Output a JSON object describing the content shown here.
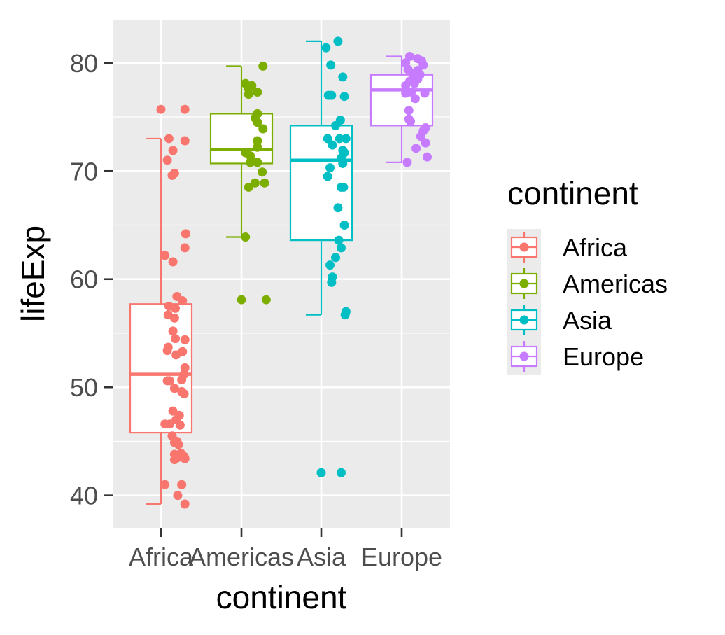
{
  "chart_data": {
    "type": "boxplot",
    "xlabel": "continent",
    "ylabel": "lifeExp",
    "ylim": [
      37,
      84
    ],
    "yticks": [
      40,
      50,
      60,
      70,
      80
    ],
    "categories": [
      "Africa",
      "Americas",
      "Asia",
      "Europe"
    ],
    "grid": true,
    "legend": {
      "title": "continent",
      "position": "right",
      "entries": [
        "Africa",
        "Americas",
        "Asia",
        "Europe"
      ]
    },
    "colors": {
      "Africa": "#F8766D",
      "Americas": "#7CAE00",
      "Asia": "#00BFC4",
      "Europe": "#C77CFF",
      "panel_bg": "#EBEBEB",
      "grid": "#FFFFFF",
      "box_fill": "#FFFFFF"
    },
    "boxes": [
      {
        "name": "Africa",
        "whisker_low": 39.2,
        "q1": 45.8,
        "median": 51.2,
        "q3": 57.7,
        "whisker_high": 73.0
      },
      {
        "name": "Americas",
        "whisker_low": 63.9,
        "q1": 70.7,
        "median": 72.0,
        "q3": 75.3,
        "whisker_high": 79.7
      },
      {
        "name": "Asia",
        "whisker_low": 56.7,
        "q1": 63.6,
        "median": 71.0,
        "q3": 74.2,
        "whisker_high": 82.0
      },
      {
        "name": "Europe",
        "whisker_low": 70.8,
        "q1": 74.2,
        "median": 77.5,
        "q3": 78.9,
        "whisker_high": 80.6
      }
    ],
    "points": [
      {
        "name": "Africa",
        "values": [
          [
            0.0,
            75.7
          ],
          [
            0.3,
            75.7
          ],
          [
            0.1,
            73.0
          ],
          [
            0.3,
            72.8
          ],
          [
            0.15,
            71.9
          ],
          [
            0.08,
            71.0
          ],
          [
            0.17,
            69.8
          ],
          [
            0.14,
            69.6
          ],
          [
            0.31,
            64.2
          ],
          [
            0.3,
            62.9
          ],
          [
            0.05,
            62.2
          ],
          [
            0.15,
            61.6
          ],
          [
            0.2,
            58.4
          ],
          [
            0.27,
            58.0
          ],
          [
            0.1,
            57.5
          ],
          [
            0.18,
            57.3
          ],
          [
            0.09,
            56.7
          ],
          [
            0.17,
            56.4
          ],
          [
            0.15,
            55.2
          ],
          [
            0.18,
            54.5
          ],
          [
            0.3,
            54.4
          ],
          [
            0.09,
            53.7
          ],
          [
            0.08,
            53.4
          ],
          [
            0.27,
            53.3
          ],
          [
            0.19,
            53.0
          ],
          [
            0.3,
            51.8
          ],
          [
            0.29,
            51.2
          ],
          [
            0.26,
            50.7
          ],
          [
            0.08,
            50.6
          ],
          [
            0.11,
            50.6
          ],
          [
            0.17,
            49.9
          ],
          [
            0.26,
            49.6
          ],
          [
            0.29,
            49.4
          ],
          [
            0.15,
            47.8
          ],
          [
            0.23,
            47.4
          ],
          [
            0.19,
            47.0
          ],
          [
            0.05,
            46.6
          ],
          [
            0.11,
            46.6
          ],
          [
            0.24,
            46.5
          ],
          [
            0.14,
            45.5
          ],
          [
            0.2,
            45.0
          ],
          [
            0.17,
            44.9
          ],
          [
            0.22,
            44.7
          ],
          [
            0.25,
            43.9
          ],
          [
            0.17,
            43.8
          ],
          [
            0.29,
            43.6
          ],
          [
            0.21,
            43.5
          ],
          [
            0.3,
            43.4
          ],
          [
            0.17,
            43.3
          ],
          [
            0.05,
            41.0
          ],
          [
            0.26,
            41.0
          ],
          [
            0.21,
            40.0
          ],
          [
            0.3,
            39.2
          ]
        ]
      },
      {
        "name": "Americas",
        "values": [
          [
            0.27,
            79.7
          ],
          [
            0.05,
            78.1
          ],
          [
            0.13,
            77.9
          ],
          [
            0.09,
            77.6
          ],
          [
            0.2,
            77.3
          ],
          [
            0.09,
            77.1
          ],
          [
            0.2,
            75.3
          ],
          [
            0.17,
            74.9
          ],
          [
            0.2,
            74.5
          ],
          [
            0.27,
            73.9
          ],
          [
            0.2,
            72.8
          ],
          [
            0.2,
            72.2
          ],
          [
            0.05,
            71.7
          ],
          [
            0.11,
            71.4
          ],
          [
            0.14,
            70.9
          ],
          [
            0.11,
            70.8
          ],
          [
            0.2,
            70.8
          ],
          [
            0.26,
            69.9
          ],
          [
            0.17,
            68.9
          ],
          [
            0.29,
            68.9
          ],
          [
            0.09,
            68.5
          ],
          [
            0.05,
            63.9
          ],
          [
            0.0,
            58.1
          ],
          [
            0.31,
            58.1
          ]
        ]
      },
      {
        "name": "Asia",
        "values": [
          [
            0.21,
            82.0
          ],
          [
            0.06,
            81.4
          ],
          [
            0.12,
            79.8
          ],
          [
            0.27,
            78.7
          ],
          [
            0.09,
            77.0
          ],
          [
            0.13,
            77.0
          ],
          [
            0.29,
            76.9
          ],
          [
            0.24,
            74.7
          ],
          [
            0.18,
            74.2
          ],
          [
            0.08,
            73.0
          ],
          [
            0.23,
            73.0
          ],
          [
            0.31,
            73.0
          ],
          [
            0.14,
            72.4
          ],
          [
            0.27,
            71.9
          ],
          [
            0.29,
            71.7
          ],
          [
            0.25,
            71.2
          ],
          [
            0.27,
            70.7
          ],
          [
            0.11,
            70.3
          ],
          [
            0.08,
            69.5
          ],
          [
            0.25,
            68.5
          ],
          [
            0.28,
            68.5
          ],
          [
            0.21,
            66.6
          ],
          [
            0.29,
            65.0
          ],
          [
            0.22,
            63.6
          ],
          [
            0.25,
            62.9
          ],
          [
            0.18,
            62.0
          ],
          [
            0.11,
            61.3
          ],
          [
            0.14,
            60.2
          ],
          [
            0.13,
            59.7
          ],
          [
            0.31,
            57.0
          ],
          [
            0.3,
            56.7
          ],
          [
            0.0,
            42.1
          ],
          [
            0.25,
            42.1
          ]
        ]
      },
      {
        "name": "Europe",
        "values": [
          [
            0.1,
            80.6
          ],
          [
            0.2,
            80.4
          ],
          [
            0.25,
            80.2
          ],
          [
            0.05,
            80.0
          ],
          [
            0.27,
            79.8
          ],
          [
            0.08,
            79.4
          ],
          [
            0.2,
            79.3
          ],
          [
            0.14,
            79.0
          ],
          [
            0.23,
            78.9
          ],
          [
            0.2,
            78.5
          ],
          [
            0.1,
            78.3
          ],
          [
            0.16,
            78.1
          ],
          [
            0.05,
            77.9
          ],
          [
            0.12,
            77.3
          ],
          [
            0.05,
            77.2
          ],
          [
            0.29,
            77.2
          ],
          [
            0.17,
            76.7
          ],
          [
            0.09,
            75.6
          ],
          [
            0.09,
            74.8
          ],
          [
            0.11,
            74.6
          ],
          [
            0.3,
            74.0
          ],
          [
            0.27,
            73.7
          ],
          [
            0.24,
            73.2
          ],
          [
            0.3,
            72.6
          ],
          [
            0.18,
            72.1
          ],
          [
            0.32,
            71.3
          ],
          [
            0.07,
            70.8
          ]
        ]
      }
    ]
  }
}
